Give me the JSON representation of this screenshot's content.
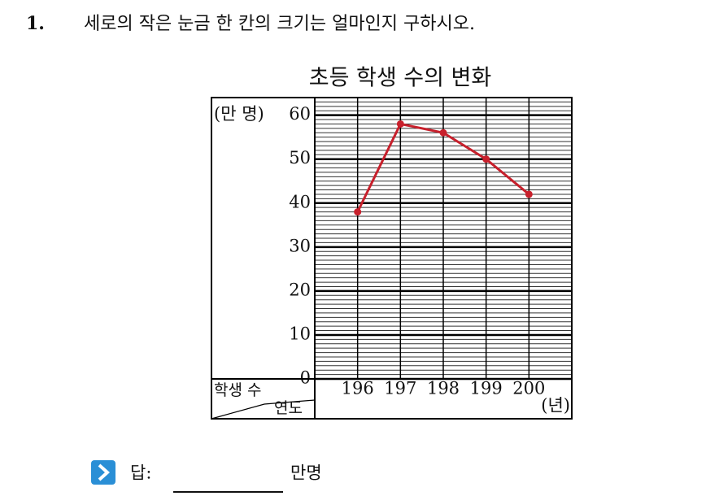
{
  "question": {
    "number": "1.",
    "text": "세로의 작은 눈금 한 칸의 크기는 얼마인지 구하시오."
  },
  "chart_data": {
    "type": "line",
    "title": "초등 학생 수의 변화",
    "y_unit": "(만 명)",
    "x_unit": "(년)",
    "y_label": "학생 수",
    "x_label": "연도",
    "categories": [
      "196",
      "197",
      "198",
      "199",
      "200"
    ],
    "values": [
      38,
      58,
      56,
      50,
      42
    ],
    "color": "#c8202c",
    "ylim": [
      0,
      64
    ],
    "yticks": [
      0,
      10,
      20,
      30,
      40,
      50,
      60
    ],
    "grid": true
  },
  "answer": {
    "label": "답:",
    "unit": "만명"
  }
}
